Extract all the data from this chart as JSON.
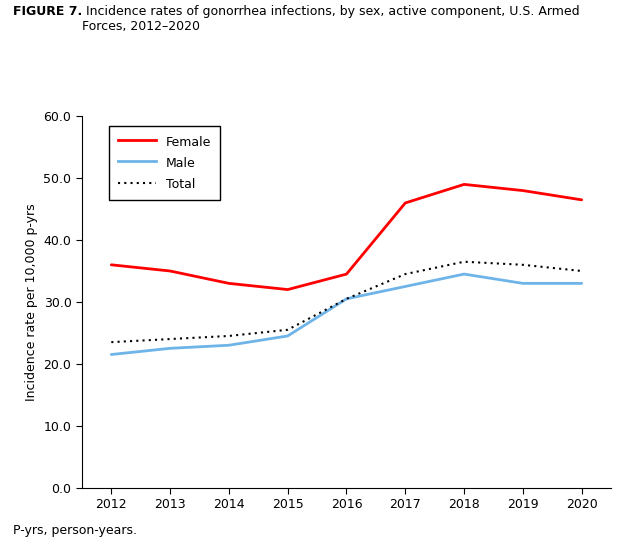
{
  "years": [
    2012,
    2013,
    2014,
    2015,
    2016,
    2017,
    2018,
    2019,
    2020
  ],
  "female": [
    36.0,
    35.0,
    33.0,
    32.0,
    34.5,
    46.0,
    49.0,
    48.0,
    46.5
  ],
  "male": [
    21.5,
    22.5,
    23.0,
    24.5,
    30.5,
    32.5,
    34.5,
    33.0,
    33.0
  ],
  "total": [
    23.5,
    24.0,
    24.5,
    25.5,
    30.5,
    34.5,
    36.5,
    36.0,
    35.0
  ],
  "female_color": "#FF0000",
  "male_color": "#6EB4E8",
  "total_color": "#000000",
  "title_bold": "FIGURE 7.",
  "title_normal": " Incidence rates of gonorrhea infections, by sex, active component, U.S. Armed\nForces, 2012–2020",
  "ylabel": "Incidence rate per 10,000 p-yrs",
  "footnote": "P-yrs, person-years.",
  "ylim": [
    0,
    60
  ],
  "yticks": [
    0.0,
    10.0,
    20.0,
    30.0,
    40.0,
    50.0,
    60.0
  ],
  "xlim": [
    2011.5,
    2020.5
  ],
  "legend_labels": [
    "Female",
    "Male",
    "Total"
  ],
  "title_fontsize": 9,
  "axis_fontsize": 9,
  "tick_fontsize": 9,
  "legend_fontsize": 9
}
